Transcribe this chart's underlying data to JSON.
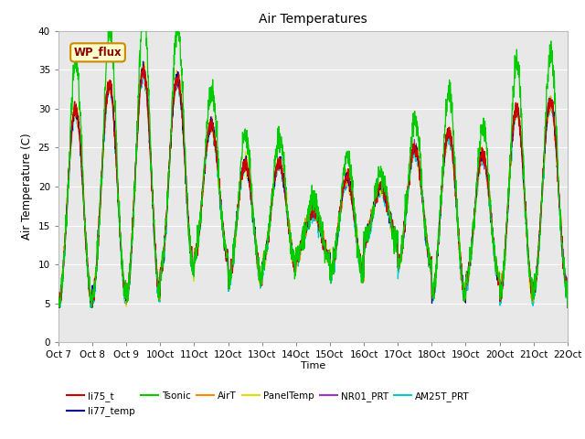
{
  "title": "Air Temperatures",
  "ylabel": "Air Temperature (C)",
  "xlabel": "Time",
  "ylim": [
    0,
    40
  ],
  "yticks": [
    0,
    5,
    10,
    15,
    20,
    25,
    30,
    35,
    40
  ],
  "xtick_labels": [
    "Oct 7",
    "Oct 8",
    "Oct 9",
    "Oct 10",
    "Oct 11",
    "Oct 12",
    "Oct 13",
    "Oct 14",
    "Oct 15",
    "Oct 16",
    "Oct 17",
    "Oct 18",
    "Oct 19",
    "Oct 20",
    "Oct 21",
    "Oct 22"
  ],
  "fig_bg": "#ffffff",
  "plot_bg": "#e8e8e8",
  "grid_color": "#ffffff",
  "series_colors": {
    "li75_t": "#cc0000",
    "li77_temp": "#000099",
    "Tsonic": "#00cc00",
    "AirT": "#ff8800",
    "PanelTemp": "#dddd00",
    "NR01_PRT": "#9933cc",
    "AM25T_PRT": "#00cccc"
  },
  "legend_label": "WP_flux",
  "legend_box_facecolor": "#ffffcc",
  "legend_box_edgecolor": "#cc8800",
  "legend_text_color": "#880000",
  "n_days": 15,
  "daily_lows": [
    5,
    6,
    6,
    9,
    11,
    8,
    10,
    11,
    9,
    13,
    10,
    6,
    8,
    6,
    7
  ],
  "daily_highs": [
    30,
    33,
    35,
    34,
    28,
    23,
    23,
    17,
    21,
    20,
    25,
    27,
    24,
    30,
    31
  ]
}
